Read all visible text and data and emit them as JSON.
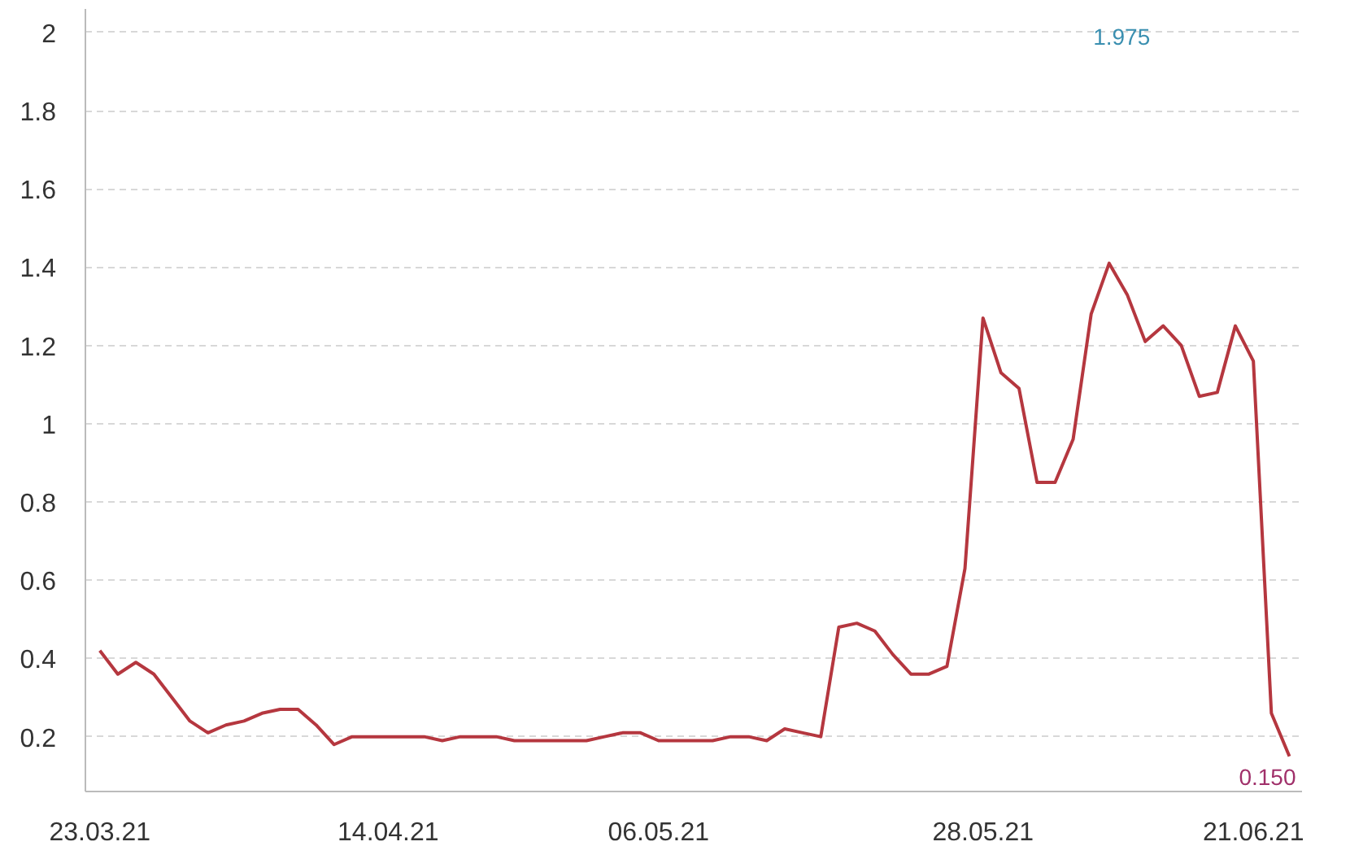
{
  "chart_data": {
    "type": "line",
    "categories": [
      "23.03.21",
      null,
      null,
      null,
      null,
      null,
      null,
      null,
      null,
      null,
      null,
      null,
      null,
      null,
      null,
      null,
      "14.04.21",
      null,
      null,
      null,
      null,
      null,
      null,
      null,
      null,
      null,
      null,
      null,
      null,
      null,
      null,
      "06.05.21",
      null,
      null,
      null,
      null,
      null,
      null,
      null,
      null,
      null,
      null,
      null,
      null,
      null,
      null,
      null,
      null,
      null,
      "28.05.21",
      null,
      null,
      null,
      null,
      null,
      null,
      null,
      null,
      null,
      null,
      null,
      null,
      null,
      null,
      "21.06.21",
      null,
      null
    ],
    "series": [
      {
        "color": "#b5373f",
        "values": [
          0.42,
          0.36,
          0.39,
          0.36,
          0.3,
          0.24,
          0.21,
          0.23,
          0.24,
          0.26,
          0.27,
          0.27,
          0.23,
          0.18,
          0.2,
          0.2,
          0.2,
          0.2,
          0.2,
          0.19,
          0.2,
          0.2,
          0.2,
          0.19,
          0.19,
          0.19,
          0.19,
          0.19,
          0.2,
          0.21,
          0.21,
          0.19,
          0.19,
          0.19,
          0.19,
          0.2,
          0.2,
          0.19,
          0.22,
          0.21,
          0.2,
          0.48,
          0.49,
          0.47,
          0.41,
          0.36,
          0.36,
          0.38,
          0.63,
          1.27,
          1.13,
          1.09,
          0.85,
          0.85,
          0.96,
          1.28,
          1.41,
          1.33,
          1.21,
          1.25,
          1.2,
          1.07,
          1.08,
          1.25,
          1.16,
          0.26,
          0.15
        ]
      }
    ],
    "ylim": [
      0.06,
      2.06
    ],
    "yticks": [
      0.2,
      0.4,
      0.6,
      0.8,
      1,
      1.2,
      1.4,
      1.6,
      1.8,
      2
    ],
    "grid": "y",
    "marker": "none",
    "line_style": "solid",
    "annotations": [
      "1.975",
      "0.150"
    ]
  }
}
